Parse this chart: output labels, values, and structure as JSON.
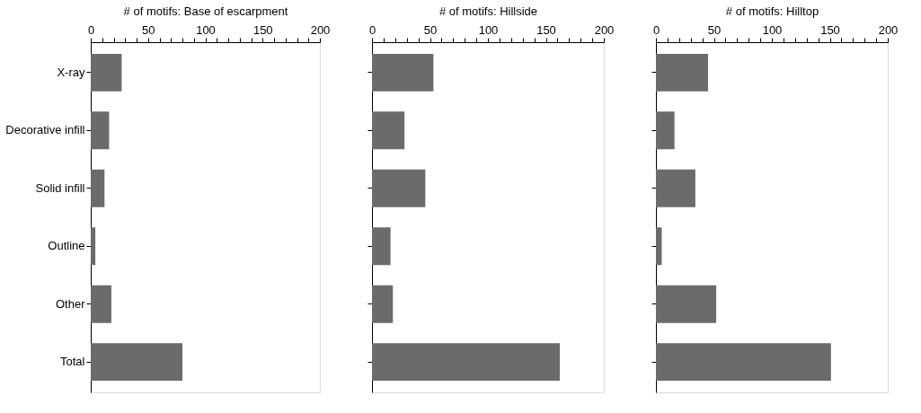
{
  "chart_data": [
    {
      "type": "bar",
      "orientation": "horizontal",
      "xlabel": "# of motifs: Base of escarpment",
      "categories": [
        "X-ray",
        "Decorative infill",
        "Solid infill",
        "Outline",
        "Other",
        "Total"
      ],
      "values": [
        27,
        16,
        12,
        4,
        18,
        80
      ],
      "color": "#6b6b6b",
      "xlim": [
        0,
        200
      ],
      "xticks": [
        0,
        {
          "value": 10,
          "label": null
        },
        {
          "value": 20,
          "label": null
        },
        {
          "value": 30,
          "label": null
        },
        {
          "value": 40,
          "label": null
        },
        50,
        {
          "value": 60,
          "label": null
        },
        {
          "value": 70,
          "label": null
        },
        {
          "value": 80,
          "label": null
        },
        {
          "value": 90,
          "label": null
        },
        100,
        {
          "value": 110,
          "label": null
        },
        {
          "value": 120,
          "label": null
        },
        {
          "value": 130,
          "label": null
        },
        {
          "value": 140,
          "label": null
        },
        150,
        {
          "value": 160,
          "label": null
        },
        {
          "value": 170,
          "label": null
        },
        {
          "value": 180,
          "label": null
        },
        {
          "value": 190,
          "label": null
        },
        200
      ],
      "grid": false
    },
    {
      "type": "bar",
      "orientation": "horizontal",
      "xlabel": "# of motifs: Hillside",
      "categories": [
        null,
        null,
        null,
        null,
        null,
        null
      ],
      "values": [
        53,
        28,
        46,
        16,
        18,
        162
      ],
      "color": "#6b6b6b",
      "xlim": [
        0,
        200
      ],
      "xticks": [
        0,
        {
          "value": 10,
          "label": null
        },
        {
          "value": 20,
          "label": null
        },
        {
          "value": 30,
          "label": null
        },
        {
          "value": 40,
          "label": null
        },
        50,
        {
          "value": 60,
          "label": null
        },
        {
          "value": 70,
          "label": null
        },
        {
          "value": 80,
          "label": null
        },
        {
          "value": 90,
          "label": null
        },
        100,
        {
          "value": 110,
          "label": null
        },
        {
          "value": 120,
          "label": null
        },
        {
          "value": 130,
          "label": null
        },
        {
          "value": 140,
          "label": null
        },
        150,
        {
          "value": 160,
          "label": null
        },
        {
          "value": 170,
          "label": null
        },
        {
          "value": 180,
          "label": null
        },
        {
          "value": 190,
          "label": null
        },
        200
      ],
      "grid": false,
      "tick_labels": "x"
    },
    {
      "type": "bar",
      "orientation": "horizontal",
      "xlabel": "# of motifs: Hilltop",
      "categories": [
        null,
        null,
        null,
        null,
        null,
        null
      ],
      "values": [
        45,
        16,
        34,
        5,
        52,
        151
      ],
      "color": "#6b6b6b",
      "xlim": [
        0,
        200
      ],
      "xticks": [
        0,
        {
          "value": 10,
          "label": null
        },
        {
          "value": 20,
          "label": null
        },
        {
          "value": 30,
          "label": null
        },
        {
          "value": 40,
          "label": null
        },
        50,
        {
          "value": 60,
          "label": null
        },
        {
          "value": 70,
          "label": null
        },
        {
          "value": 80,
          "label": null
        },
        {
          "value": 90,
          "label": null
        },
        100,
        {
          "value": 110,
          "label": null
        },
        {
          "value": 120,
          "label": null
        },
        {
          "value": 130,
          "label": null
        },
        {
          "value": 140,
          "label": null
        },
        150,
        {
          "value": 160,
          "label": null
        },
        {
          "value": 170,
          "label": null
        },
        {
          "value": 180,
          "label": null
        },
        {
          "value": 190,
          "label": null
        },
        200
      ],
      "grid": false,
      "tick_labels": "x"
    }
  ]
}
